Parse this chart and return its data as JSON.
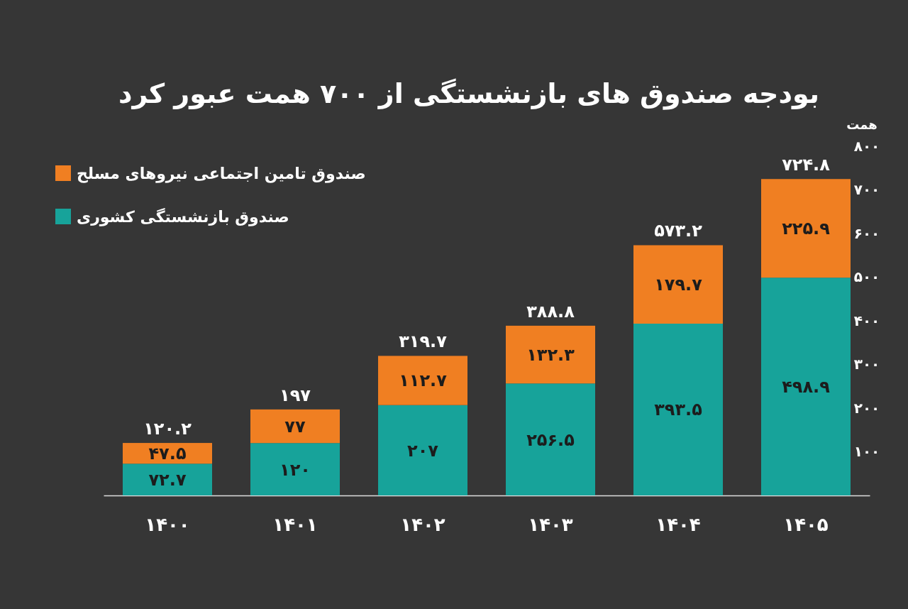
{
  "chart_data": {
    "type": "bar",
    "stacked": true,
    "title": "بودجه صندوق های بازنشستگی از ۷۰۰ همت عبور کرد",
    "ylabel": "همت",
    "categories": [
      "۱۴۰۰",
      "۱۴۰۱",
      "۱۴۰۲",
      "۱۴۰۳",
      "۱۴۰۴",
      "۱۴۰۵"
    ],
    "series": [
      {
        "name": "صندوق بازنشستگی کشوری",
        "color": "#17a39a",
        "values": [
          72.7,
          120,
          207,
          256.5,
          393.5,
          498.9
        ],
        "value_labels": [
          "۷۲.۷",
          "۱۲۰",
          "۲۰۷",
          "۲۵۶.۵",
          "۳۹۳.۵",
          "۴۹۸.۹"
        ]
      },
      {
        "name": "صندوق تامین اجتماعی نیروهای مسلح",
        "color": "#f07f22",
        "values": [
          47.5,
          77,
          112.7,
          132.3,
          179.7,
          225.9
        ],
        "value_labels": [
          "۴۷.۵",
          "۷۷",
          "۱۱۲.۷",
          "۱۳۲.۳",
          "۱۷۹.۷",
          "۲۲۵.۹"
        ]
      }
    ],
    "totals": [
      "۱۲۰.۲",
      "۱۹۷",
      "۳۱۹.۷",
      "۳۸۸.۸",
      "۵۷۳.۲",
      "۷۲۴.۸"
    ],
    "ylim": [
      0,
      800
    ],
    "yticks": [
      {
        "value": 100,
        "label": "۱۰۰"
      },
      {
        "value": 200,
        "label": "۲۰۰"
      },
      {
        "value": 300,
        "label": "۳۰۰"
      },
      {
        "value": 400,
        "label": "۴۰۰"
      },
      {
        "value": 500,
        "label": "۵۰۰"
      },
      {
        "value": 600,
        "label": "۶۰۰"
      },
      {
        "value": 700,
        "label": "۷۰۰"
      },
      {
        "value": 800,
        "label": "۸۰۰"
      }
    ],
    "grid": false,
    "legend": "top left"
  }
}
